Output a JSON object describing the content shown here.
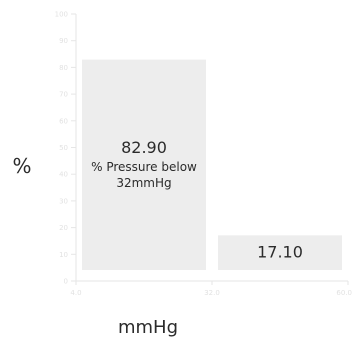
{
  "chart_data": {
    "type": "bar",
    "xlabel": "mmHg",
    "ylabel": "%",
    "ylim": [
      0,
      100
    ],
    "xlim": [
      4.0,
      60.0
    ],
    "y_ticks": [
      "0",
      "10",
      "20",
      "30",
      "40",
      "50",
      "60",
      "70",
      "80",
      "90",
      "100"
    ],
    "x_ticks": [
      "4.0",
      "32.0",
      "60.0"
    ],
    "grid": false,
    "bars": [
      {
        "x_start": 4.0,
        "x_end": 32.0,
        "value": 82.9,
        "value_label": "82.90",
        "caption_lines": [
          "% Pressure below",
          "32mmHg"
        ]
      },
      {
        "x_start": 32.0,
        "x_end": 60.0,
        "value": 17.1,
        "value_label": "17.10",
        "caption_lines": []
      }
    ],
    "colors": {
      "bar": "#ededed",
      "text": "#2b2b2b",
      "axis": "#e6e6e6",
      "tick_text": "#e2e2e2"
    }
  }
}
